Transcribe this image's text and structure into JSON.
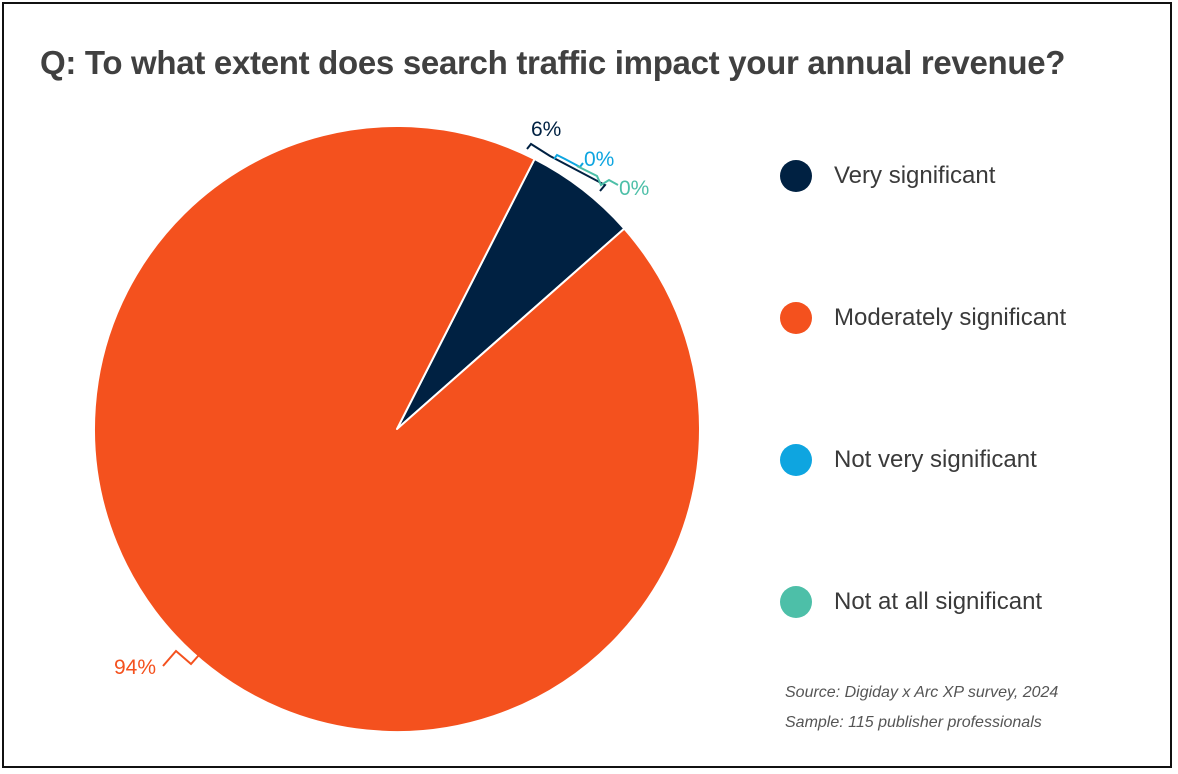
{
  "chart_data": {
    "type": "pie",
    "title": "Q: To what extent does search traffic impact your annual revenue?",
    "start_angle_deg": 27,
    "slices": [
      {
        "label": "Very significant",
        "value": 6,
        "display": "6%",
        "color": "#002142"
      },
      {
        "label": "Moderately significant",
        "value": 94,
        "display": "94%",
        "color": "#F4511E"
      },
      {
        "label": "Not very significant",
        "value": 0,
        "display": "0%",
        "color": "#0EA5E0"
      },
      {
        "label": "Not at all significant",
        "value": 0,
        "display": "0%",
        "color": "#4DBFA8"
      }
    ],
    "legend_position": "right"
  },
  "footnotes": {
    "source": "Source: Digiday x Arc XP survey, 2024",
    "sample": "Sample: 115 publisher professionals"
  }
}
